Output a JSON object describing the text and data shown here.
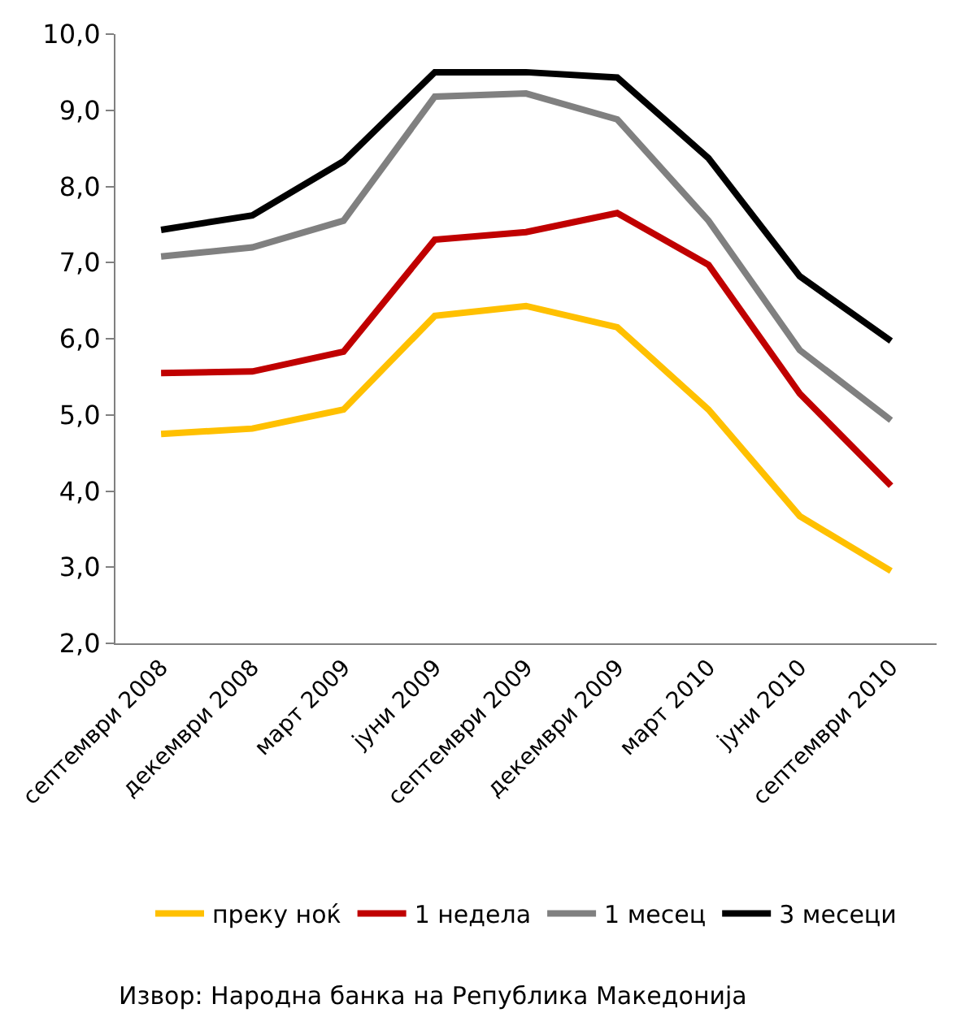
{
  "chart_data": {
    "type": "line",
    "categories": [
      "септември 2008",
      "декември 2008",
      "март 2009",
      "јуни 2009",
      "септември 2009",
      "декември 2009",
      "март 2010",
      "јуни 2010",
      "септември 2010"
    ],
    "series": [
      {
        "name": "преку ноќ",
        "color": "#ffc000",
        "values": [
          4.75,
          4.82,
          5.07,
          6.3,
          6.43,
          6.15,
          5.07,
          3.67,
          2.95
        ]
      },
      {
        "name": "1 недела",
        "color": "#c00000",
        "values": [
          5.55,
          5.57,
          5.83,
          7.3,
          7.4,
          7.65,
          6.97,
          5.28,
          4.07
        ]
      },
      {
        "name": "1 месец",
        "color": "#808080",
        "values": [
          7.08,
          7.2,
          7.55,
          9.18,
          9.22,
          8.88,
          7.55,
          5.85,
          4.93
        ]
      },
      {
        "name": "3 месеци",
        "color": "#000000",
        "values": [
          7.43,
          7.62,
          8.33,
          9.5,
          9.5,
          9.43,
          8.37,
          6.82,
          5.97
        ]
      }
    ],
    "ylim": [
      2,
      10
    ],
    "yticks": [
      {
        "value": 2,
        "label": "2,0"
      },
      {
        "value": 3,
        "label": "3,0"
      },
      {
        "value": 4,
        "label": "4,0"
      },
      {
        "value": 5,
        "label": "5,0"
      },
      {
        "value": 6,
        "label": "6,0"
      },
      {
        "value": 7,
        "label": "7,0"
      },
      {
        "value": 8,
        "label": "8,0"
      },
      {
        "value": 9,
        "label": "9,0"
      },
      {
        "value": 10,
        "label": "10,0"
      }
    ],
    "legend": "bottom",
    "marker": "none",
    "line_style": "solid",
    "annotations": [
      "Извор: Народна банка на Република Македонија"
    ]
  }
}
